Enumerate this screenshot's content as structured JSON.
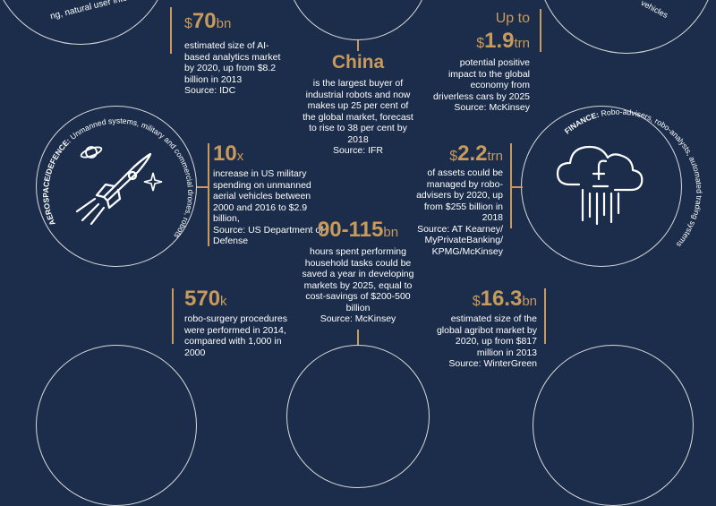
{
  "top_left": {
    "arc_text": "ng, natural user interf",
    "stat_prefix": "$",
    "stat_value": "70",
    "stat_unit": "bn",
    "desc": "estimated size of AI-based analytics market by 2020, up from $8.2 billion in 2013",
    "source": "Source: IDC"
  },
  "top_center": {
    "title": "China",
    "desc": "is the largest buyer of industrial robots and now makes up 25 per cent of the global market, forecast to rise to 38 per cent by 2018",
    "source": "Source: IFR"
  },
  "top_right": {
    "arc_text": "vehicles",
    "stat_pre": "Up to",
    "stat_prefix": "$",
    "stat_value": "1.9",
    "stat_unit": "trn",
    "desc": "potential positive impact to the global economy from driverless cars by 2025",
    "source": "Source: McKinsey"
  },
  "aerospace": {
    "arc_label": "AEROSPACE/DEFENCE:",
    "arc_text": "Unmanned systems, military and commercial drones, robots",
    "stat_value": "10",
    "stat_unit": "x",
    "desc": "increase in US military spending on unmanned aerial vehicles between 2000 and 2016 to $2.9 billion,",
    "source": "Source: US Department of Defense"
  },
  "household": {
    "stat_value": "90-115",
    "stat_unit": "bn",
    "desc": "hours spent performing household tasks could be saved a year in developing markets by 2025, equal to cost-savings of $200-500 billion",
    "source": "Source: McKinsey"
  },
  "finance": {
    "arc_label": "FINANCE:",
    "arc_text": "Robo-advisers, robo-analysts, automated trading systems",
    "stat_prefix": "$",
    "stat_value": "2.2",
    "stat_unit": "trn",
    "desc": "of assets could be managed by robo-advisers by 2020, up from $255 billion in 2018",
    "source": "Source: AT Kearney/ MyPrivateBanking/ KPMG/McKinsey"
  },
  "surgery": {
    "stat_value": "570",
    "stat_unit": "k",
    "desc": "robo-surgery procedures were performed in 2014, compared with 1,000 in 2000"
  },
  "agribot": {
    "stat_prefix": "$",
    "stat_value": "16.3",
    "stat_unit": "bn",
    "desc": "estimated size of the global agribot market by 2020, up from $817 million in 2013",
    "source": "Source: WinterGreen"
  },
  "colors": {
    "background": "#1b2d4a",
    "accent": "#c89a5c",
    "text": "#ffffff",
    "line": "#d9d9d9"
  },
  "icons": [
    "rocket-icon",
    "planet-icon",
    "star-icon",
    "cloud-pound-icon"
  ]
}
